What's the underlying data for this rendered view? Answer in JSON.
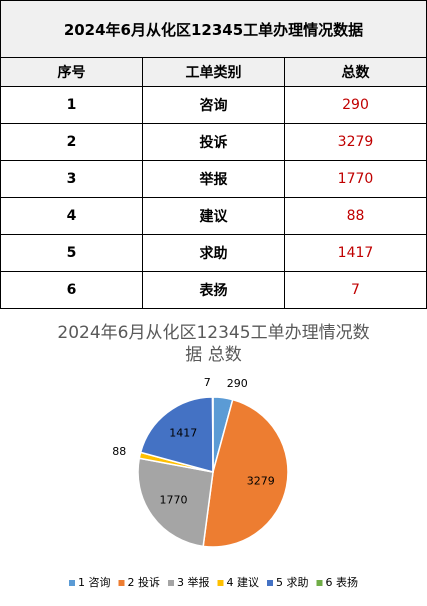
{
  "table": {
    "title": "2024年6月从化区12345工单办理情况数据",
    "columns": [
      "序号",
      "工单类别",
      "总数"
    ],
    "rows": [
      [
        "1",
        "咨询",
        "290"
      ],
      [
        "2",
        "投诉",
        "3279"
      ],
      [
        "3",
        "举报",
        "1770"
      ],
      [
        "4",
        "建议",
        "88"
      ],
      [
        "5",
        "求助",
        "1417"
      ],
      [
        "6",
        "表扬",
        "7"
      ]
    ]
  },
  "chart_data": {
    "type": "pie",
    "title": "2024年6月从化区12345工单办理情况数据 总数",
    "categories": [
      "1 咨询",
      "2 投诉",
      "3 举报",
      "4 建议",
      "5 求助",
      "6 表扬"
    ],
    "values": [
      290,
      3279,
      1770,
      88,
      1417,
      7
    ],
    "colors": [
      "#5b9bd5",
      "#ed7d31",
      "#a5a5a5",
      "#ffc000",
      "#4472c4",
      "#70ad47"
    ],
    "legend": "bottom"
  }
}
